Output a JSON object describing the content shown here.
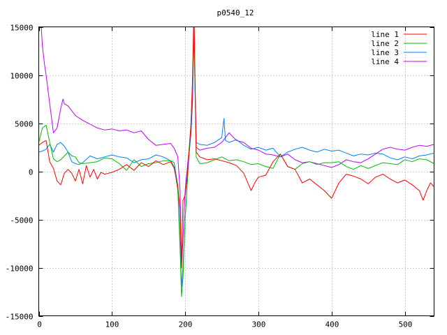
{
  "chart_data": {
    "type": "line",
    "title": "p0540_12",
    "xlabel": "",
    "ylabel": "",
    "xlim": [
      0,
      540
    ],
    "ylim": [
      -15000,
      15000
    ],
    "xticks": [
      0,
      100,
      200,
      300,
      400,
      500
    ],
    "yticks": [
      -15000,
      -10000,
      -5000,
      0,
      5000,
      10000,
      15000
    ],
    "grid": true,
    "legend_position": "top-right",
    "series": [
      {
        "name": "line 1",
        "color": "#ff0000",
        "x": [
          0,
          5,
          10,
          15,
          20,
          25,
          30,
          35,
          40,
          45,
          50,
          55,
          60,
          65,
          70,
          75,
          80,
          85,
          90,
          95,
          100,
          110,
          120,
          130,
          140,
          150,
          160,
          170,
          180,
          185,
          190,
          193,
          195,
          197,
          200,
          203,
          205,
          208,
          210,
          212,
          215,
          220,
          230,
          240,
          250,
          260,
          270,
          280,
          290,
          295,
          300,
          310,
          320,
          330,
          340,
          350,
          360,
          370,
          380,
          390,
          400,
          410,
          420,
          430,
          440,
          450,
          460,
          470,
          480,
          490,
          500,
          510,
          520,
          525,
          530,
          535,
          540
        ],
        "y": [
          2700,
          3000,
          3200,
          1000,
          300,
          -1000,
          -1400,
          -200,
          200,
          -200,
          -1000,
          200,
          -1300,
          600,
          -600,
          200,
          -800,
          -100,
          -300,
          -200,
          -100,
          200,
          700,
          100,
          900,
          500,
          1100,
          700,
          1000,
          300,
          -1500,
          -4000,
          -10000,
          -3000,
          -2500,
          -300,
          1500,
          5000,
          9500,
          17000,
          2000,
          1500,
          1200,
          1300,
          1100,
          900,
          600,
          -200,
          -2000,
          -1200,
          -600,
          -400,
          1000,
          1800,
          500,
          200,
          -1200,
          -800,
          -1400,
          -2000,
          -2800,
          -1200,
          -300,
          -500,
          -800,
          -1300,
          -600,
          -300,
          -800,
          -1200,
          -900,
          -1400,
          -2000,
          -3000,
          -2000,
          -1200,
          -1600
        ]
      },
      {
        "name": "line 2",
        "color": "#00c000",
        "x": [
          0,
          5,
          10,
          15,
          20,
          25,
          30,
          35,
          40,
          45,
          50,
          55,
          60,
          70,
          80,
          90,
          100,
          110,
          120,
          130,
          140,
          150,
          160,
          170,
          180,
          185,
          190,
          193,
          195,
          197,
          200,
          203,
          205,
          208,
          210,
          212,
          215,
          220,
          230,
          240,
          250,
          260,
          270,
          280,
          290,
          300,
          310,
          320,
          330,
          340,
          350,
          360,
          370,
          380,
          390,
          400,
          410,
          420,
          430,
          440,
          450,
          460,
          470,
          480,
          490,
          500,
          510,
          520,
          530,
          540
        ],
        "y": [
          3000,
          4500,
          4800,
          3000,
          1300,
          1000,
          1200,
          1600,
          2000,
          1600,
          1500,
          900,
          800,
          900,
          1000,
          1400,
          1300,
          800,
          100,
          1200,
          500,
          800,
          900,
          1100,
          1100,
          500,
          -2000,
          -8000,
          -13000,
          -11000,
          -5000,
          -1000,
          2000,
          5000,
          9000,
          15000,
          1500,
          800,
          900,
          1200,
          1500,
          1100,
          1200,
          1000,
          700,
          800,
          500,
          300,
          1800,
          500,
          200,
          800,
          1000,
          700,
          900,
          900,
          1000,
          500,
          200,
          600,
          300,
          600,
          900,
          800,
          700,
          1200,
          1000,
          1300,
          1200,
          800
        ]
      },
      {
        "name": "line 3",
        "color": "#0080ff",
        "x": [
          0,
          5,
          10,
          15,
          20,
          25,
          30,
          35,
          40,
          45,
          50,
          55,
          60,
          70,
          80,
          90,
          100,
          110,
          120,
          130,
          140,
          150,
          160,
          170,
          180,
          185,
          190,
          193,
          195,
          197,
          200,
          203,
          205,
          208,
          210,
          212,
          215,
          220,
          230,
          240,
          250,
          253,
          255,
          260,
          270,
          280,
          290,
          300,
          310,
          320,
          330,
          340,
          350,
          360,
          370,
          380,
          390,
          400,
          410,
          420,
          430,
          440,
          450,
          460,
          470,
          480,
          490,
          500,
          510,
          520,
          530,
          540
        ],
        "y": [
          2000,
          2100,
          2300,
          2800,
          2000,
          2800,
          3000,
          2600,
          2000,
          1000,
          800,
          700,
          900,
          1600,
          1300,
          1500,
          1700,
          1500,
          1400,
          900,
          1200,
          1300,
          1700,
          1500,
          1100,
          900,
          -1500,
          -7000,
          -12000,
          -10000,
          -5000,
          -1000,
          1500,
          4000,
          8000,
          14500,
          3000,
          2800,
          2700,
          3000,
          3500,
          5500,
          3200,
          3000,
          3300,
          2700,
          2300,
          2500,
          2200,
          2400,
          1500,
          2000,
          2300,
          2500,
          2200,
          2000,
          2300,
          2100,
          2200,
          1900,
          1600,
          1800,
          1700,
          1900,
          1800,
          1400,
          1200,
          1500,
          1300,
          1600,
          1700,
          1900
        ]
      },
      {
        "name": "line 4",
        "color": "#c000ff",
        "x": [
          0,
          3,
          5,
          8,
          10,
          15,
          20,
          25,
          30,
          33,
          35,
          40,
          50,
          60,
          70,
          80,
          90,
          100,
          110,
          120,
          130,
          140,
          150,
          160,
          170,
          180,
          185,
          190,
          193,
          195,
          197,
          200,
          203,
          205,
          208,
          210,
          212,
          215,
          220,
          230,
          240,
          250,
          260,
          270,
          280,
          290,
          300,
          310,
          320,
          330,
          340,
          350,
          360,
          370,
          380,
          390,
          400,
          410,
          420,
          430,
          440,
          450,
          460,
          470,
          480,
          490,
          500,
          510,
          520,
          530,
          540
        ],
        "y": [
          15000,
          15500,
          13000,
          11000,
          10000,
          7000,
          4000,
          4500,
          6500,
          7500,
          7000,
          6800,
          5800,
          5300,
          4900,
          4500,
          4300,
          4400,
          4200,
          4300,
          4000,
          4200,
          3300,
          2700,
          2800,
          2900,
          2400,
          1500,
          -2000,
          -10000,
          -7000,
          -2000,
          500,
          2000,
          4000,
          7000,
          14500,
          2500,
          2200,
          2400,
          2500,
          3000,
          4000,
          3200,
          3000,
          2400,
          2200,
          1800,
          1700,
          1500,
          1800,
          1200,
          900,
          1000,
          800,
          600,
          400,
          700,
          1200,
          1000,
          900,
          1300,
          1800,
          2300,
          2500,
          2300,
          2200,
          2500,
          2700,
          2600,
          2800
        ]
      }
    ]
  }
}
